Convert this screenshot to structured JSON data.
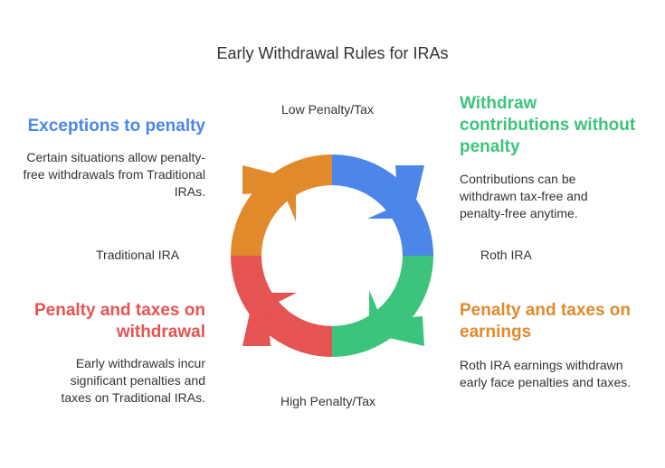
{
  "title": "Early Withdrawal Rules for IRAs",
  "axes": {
    "top": "Low Penalty/Tax",
    "bottom": "High Penalty/Tax",
    "left": "Traditional IRA",
    "right": "Roth IRA"
  },
  "quadrants": [
    {
      "position": "top-left",
      "heading": "Exceptions to penalty",
      "description": "Certain situations allow penalty-free withdrawals from Traditional IRAs.",
      "color": "#4b86e8"
    },
    {
      "position": "top-right",
      "heading": "Withdraw contributions without penalty",
      "description": "Contributions can be withdrawn tax-free and penalty-free anytime.",
      "color": "#3cc47c"
    },
    {
      "position": "bottom-left",
      "heading": "Penalty and taxes on withdrawal",
      "description": "Early withdrawals incur significant penalties and taxes on Traditional IRAs.",
      "color": "#e55353"
    },
    {
      "position": "bottom-right",
      "heading": "Penalty and taxes on earnings",
      "description": "Roth IRA earnings withdrawn early face penalties and taxes.",
      "color": "#e08a2c"
    }
  ],
  "cycle_colors": {
    "top_right": "#4b86e8",
    "bottom_right": "#3cc47c",
    "bottom_left": "#e55353",
    "top_left": "#e08a2c"
  }
}
